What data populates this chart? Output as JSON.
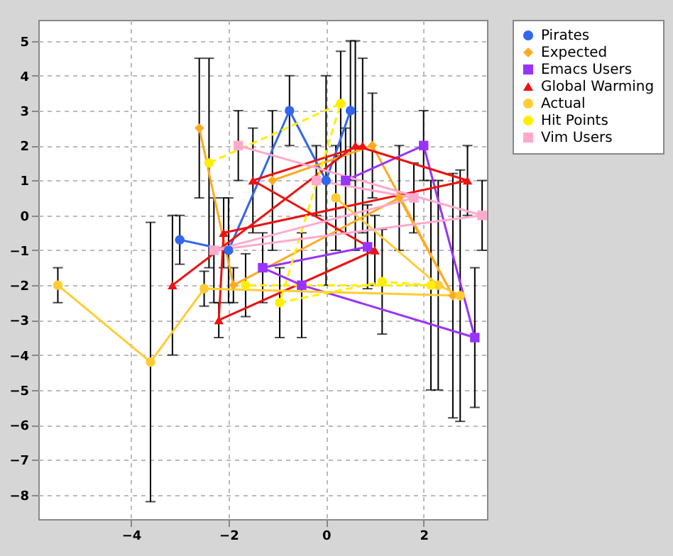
{
  "chart_data": {
    "type": "line",
    "xlim": [
      -5.9,
      3.3
    ],
    "ylim": [
      -8.7,
      5.6
    ],
    "xticks": [
      -4,
      -2,
      0,
      2
    ],
    "yticks": [
      -8,
      -7,
      -6,
      -5,
      -4,
      -3,
      -2,
      -1,
      0,
      1,
      2,
      3,
      4,
      5
    ],
    "grid": true,
    "legend": "right",
    "series": [
      {
        "name": "Pirates",
        "color": "#3366ee",
        "marker": "circle",
        "line_style": "solid",
        "x": [
          -3,
          -2,
          -0.75,
          0,
          0.5
        ],
        "values": [
          -0.7,
          -1,
          3,
          1,
          3
        ],
        "errors": [
          0.7,
          1.5,
          1,
          3,
          2
        ]
      },
      {
        "name": "Expected",
        "color": "#ffaa22",
        "marker": "diamond",
        "line_style": "solid",
        "x": [
          -2.6,
          -1.9,
          1.5,
          2.6,
          0.95,
          -1.1
        ],
        "values": [
          2.5,
          -2,
          0.5,
          -2.3,
          2,
          1
        ],
        "errors": [
          2,
          0.5,
          1.5,
          3.5,
          1.5,
          2
        ]
      },
      {
        "name": "Emacs Users",
        "color": "#9933ff",
        "marker": "square",
        "line_style": "solid",
        "x": [
          0.4,
          2,
          3.05,
          -0.5,
          -1.3,
          0.85
        ],
        "values": [
          1,
          2,
          -3.5,
          -2,
          -1.5,
          -0.9
        ],
        "errors": [
          1.5,
          1,
          2,
          1.5,
          1,
          1.2
        ]
      },
      {
        "name": "Global Warming",
        "color": "#ee1111",
        "marker": "triangle",
        "line_style": "solid",
        "x": [
          -3.15,
          0.6,
          2.9,
          -2.1,
          -2.2,
          1,
          -1.5,
          0.75
        ],
        "values": [
          -2,
          2,
          1,
          -0.5,
          -3,
          -1,
          1,
          2
        ],
        "errors": [
          2,
          3,
          1,
          1,
          0.5,
          1,
          1.5,
          2.5
        ]
      },
      {
        "name": "Actual",
        "color": "#ffcc33",
        "marker": "circle",
        "line_style": "solid",
        "x": [
          -5.5,
          -3.6,
          -2.5,
          2.75,
          2.3,
          0.2
        ],
        "values": [
          -2,
          -4.2,
          -2.1,
          -2.3,
          -2,
          0.5
        ],
        "errors": [
          0.5,
          4,
          0.5,
          3.6,
          3,
          1.5
        ]
      },
      {
        "name": "Hit Points",
        "color": "#ffee00",
        "marker": "circle",
        "line_style": "dashed",
        "x": [
          -2.4,
          0.3,
          -0.95,
          1.15,
          2.15,
          -1.65
        ],
        "values": [
          1.5,
          3.2,
          -2.5,
          -1.9,
          -2,
          -2
        ],
        "errors": [
          3,
          1.5,
          1,
          1.5,
          3,
          0.9
        ]
      },
      {
        "name": "Vim Users",
        "color": "#ffaacc",
        "marker": "square",
        "line_style": "solid",
        "x": [
          -1.8,
          3.2,
          -2.3,
          1.8,
          -0.2
        ],
        "values": [
          2,
          0,
          -1,
          0.5,
          1
        ],
        "errors": [
          1,
          1,
          1.5,
          1,
          1
        ]
      }
    ]
  }
}
